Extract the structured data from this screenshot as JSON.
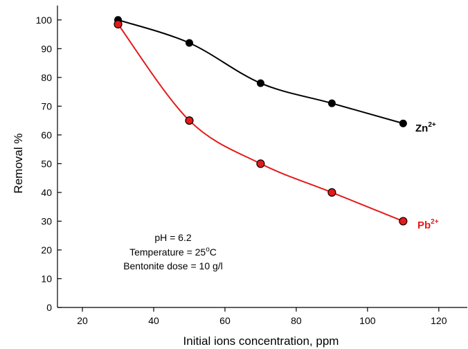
{
  "chart_data": {
    "type": "line",
    "xlabel": "Initial ions concentration, ppm",
    "ylabel": "Removal %",
    "xlim": [
      13,
      128
    ],
    "ylim": [
      0,
      105
    ],
    "xticks": [
      20,
      40,
      60,
      80,
      100,
      120
    ],
    "yticks": [
      0,
      10,
      20,
      30,
      40,
      50,
      60,
      70,
      80,
      90,
      100
    ],
    "grid": false,
    "series": [
      {
        "name": "Zn",
        "superscript": "2+",
        "color": "#000000",
        "x": [
          30,
          50,
          70,
          90,
          110
        ],
        "values": [
          100,
          92,
          78,
          71,
          64
        ]
      },
      {
        "name": "Pb",
        "superscript": "2+",
        "color": "#e41a1a",
        "x": [
          30,
          50,
          70,
          90,
          110
        ],
        "values": [
          98.5,
          65,
          50,
          40,
          30
        ]
      }
    ],
    "annotations": {
      "line1": "pH = 6.2",
      "line2_prefix": "Temperature = 25",
      "line2_sup": "o",
      "line2_suffix": "C",
      "line3": "Bentonite dose = 10 g/l"
    }
  }
}
